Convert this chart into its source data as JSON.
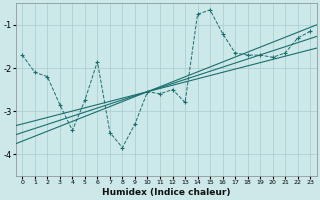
{
  "xlabel": "Humidex (Indice chaleur)",
  "bg_color": "#cce8e8",
  "line_color": "#1a6e6e",
  "x_data": [
    0,
    1,
    2,
    3,
    4,
    5,
    6,
    7,
    8,
    9,
    10,
    11,
    12,
    13,
    14,
    15,
    16,
    17,
    18,
    19,
    20,
    21,
    22,
    23
  ],
  "y_scatter": [
    -1.7,
    -2.1,
    -2.2,
    -2.85,
    -3.45,
    -2.75,
    -1.85,
    -3.5,
    -3.85,
    -3.3,
    -2.55,
    -2.6,
    -2.5,
    -2.8,
    -0.75,
    -0.65,
    -1.2,
    -1.65,
    -1.7,
    -1.7,
    -1.75,
    -1.65,
    -1.3,
    -1.15
  ],
  "xlim": [
    -0.5,
    23.5
  ],
  "ylim": [
    -4.5,
    -0.5
  ],
  "yticks": [
    -4,
    -3,
    -2,
    -1
  ],
  "xticks": [
    0,
    1,
    2,
    3,
    4,
    5,
    6,
    7,
    8,
    9,
    10,
    11,
    12,
    13,
    14,
    15,
    16,
    17,
    18,
    19,
    20,
    21,
    22,
    23
  ],
  "lines": [
    {
      "slope": 0.075,
      "intercept": -3.3
    },
    {
      "slope": 0.095,
      "intercept": -3.5
    },
    {
      "slope": 0.115,
      "intercept": -3.7
    }
  ]
}
